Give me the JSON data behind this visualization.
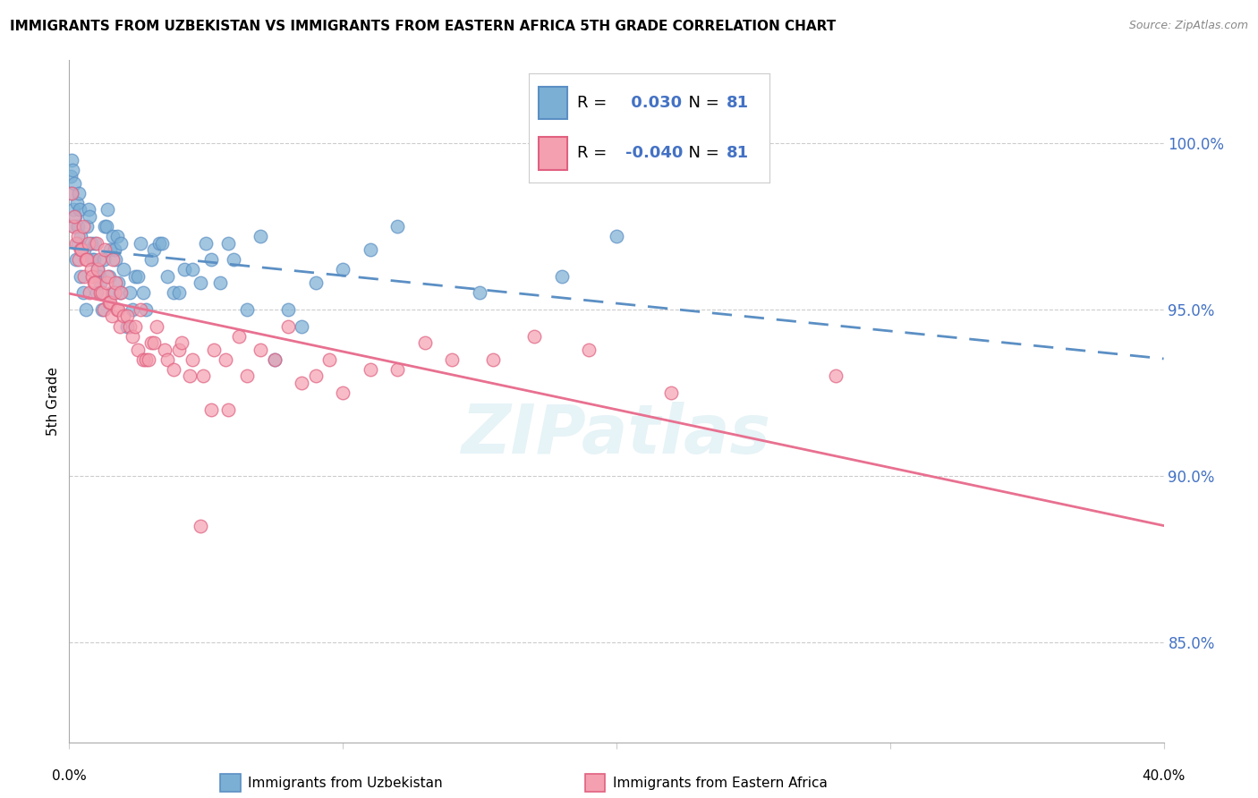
{
  "title": "IMMIGRANTS FROM UZBEKISTAN VS IMMIGRANTS FROM EASTERN AFRICA 5TH GRADE CORRELATION CHART",
  "source": "Source: ZipAtlas.com",
  "ylabel": "5th Grade",
  "xmin": 0.0,
  "xmax": 40.0,
  "ymin": 82.0,
  "ymax": 102.5,
  "yticks": [
    85.0,
    90.0,
    95.0,
    100.0
  ],
  "ytick_labels": [
    "85.0%",
    "90.0%",
    "95.0%",
    "100.0%"
  ],
  "r_uzbekistan": 0.03,
  "r_eastern_africa": -0.04,
  "n_uzbekistan": 81,
  "n_eastern_africa": 81,
  "color_uzbekistan": "#7BAFD4",
  "color_eastern_africa": "#F4A0B0",
  "edge_color_uzbekistan": "#5B8FC4",
  "edge_color_eastern_africa": "#E06080",
  "trend_color_uzbekistan": "#5B8FC4",
  "trend_color_eastern_africa": "#E87090",
  "legend_label_uzbekistan": "Immigrants from Uzbekistan",
  "legend_label_eastern_africa": "Immigrants from Eastern Africa",
  "watermark": "ZIPatlas",
  "uzbekistan_x": [
    0.05,
    0.08,
    0.1,
    0.12,
    0.15,
    0.18,
    0.2,
    0.22,
    0.25,
    0.28,
    0.3,
    0.32,
    0.35,
    0.38,
    0.4,
    0.42,
    0.5,
    0.55,
    0.6,
    0.65,
    0.7,
    0.75,
    0.8,
    0.85,
    0.9,
    0.95,
    1.0,
    1.05,
    1.1,
    1.15,
    1.2,
    1.25,
    1.3,
    1.35,
    1.4,
    1.45,
    1.5,
    1.55,
    1.6,
    1.65,
    1.7,
    1.75,
    1.8,
    1.85,
    1.9,
    2.0,
    2.1,
    2.2,
    2.3,
    2.4,
    2.5,
    2.6,
    2.7,
    2.8,
    3.0,
    3.1,
    3.3,
    3.4,
    3.6,
    3.8,
    4.0,
    4.2,
    4.5,
    4.8,
    5.0,
    5.2,
    5.5,
    5.8,
    6.0,
    6.5,
    7.0,
    7.5,
    8.0,
    8.5,
    9.0,
    10.0,
    11.0,
    12.0,
    15.0,
    18.0,
    20.0
  ],
  "uzbekistan_y": [
    99.0,
    98.5,
    99.5,
    99.2,
    98.0,
    98.8,
    97.5,
    97.8,
    96.5,
    98.2,
    97.0,
    97.5,
    98.5,
    98.0,
    96.0,
    97.2,
    95.5,
    96.8,
    95.0,
    97.5,
    98.0,
    97.8,
    97.0,
    96.5,
    96.5,
    97.0,
    95.5,
    96.2,
    96.0,
    95.8,
    95.0,
    96.5,
    97.5,
    97.5,
    98.0,
    96.0,
    96.8,
    95.5,
    97.2,
    96.8,
    96.5,
    97.2,
    95.8,
    95.5,
    97.0,
    96.2,
    94.5,
    95.5,
    95.0,
    96.0,
    96.0,
    97.0,
    95.5,
    95.0,
    96.5,
    96.8,
    97.0,
    97.0,
    96.0,
    95.5,
    95.5,
    96.2,
    96.2,
    95.8,
    97.0,
    96.5,
    95.8,
    97.0,
    96.5,
    95.0,
    97.2,
    93.5,
    95.0,
    94.5,
    95.8,
    96.2,
    96.8,
    97.5,
    95.5,
    96.0,
    97.2
  ],
  "eastern_africa_x": [
    0.1,
    0.15,
    0.2,
    0.25,
    0.3,
    0.35,
    0.4,
    0.45,
    0.5,
    0.55,
    0.6,
    0.65,
    0.7,
    0.75,
    0.8,
    0.85,
    0.9,
    0.95,
    1.0,
    1.05,
    1.1,
    1.15,
    1.2,
    1.25,
    1.3,
    1.35,
    1.4,
    1.45,
    1.5,
    1.55,
    1.6,
    1.65,
    1.7,
    1.75,
    1.8,
    1.85,
    1.9,
    2.0,
    2.1,
    2.2,
    2.3,
    2.4,
    2.5,
    2.6,
    2.7,
    2.8,
    2.9,
    3.0,
    3.1,
    3.2,
    3.5,
    3.6,
    3.8,
    4.0,
    4.1,
    4.4,
    4.5,
    4.8,
    4.9,
    5.2,
    5.3,
    5.7,
    5.8,
    6.2,
    6.5,
    7.0,
    7.5,
    8.0,
    8.5,
    9.0,
    9.5,
    10.0,
    11.0,
    12.0,
    13.0,
    14.0,
    15.5,
    17.0,
    19.0,
    22.0,
    28.0
  ],
  "eastern_africa_y": [
    98.5,
    97.5,
    97.8,
    97.0,
    97.2,
    96.5,
    96.8,
    96.8,
    97.5,
    96.0,
    96.5,
    96.5,
    97.0,
    95.5,
    96.2,
    96.0,
    95.8,
    95.8,
    97.0,
    96.2,
    96.5,
    95.5,
    95.5,
    95.0,
    96.8,
    95.8,
    96.0,
    95.2,
    95.2,
    94.8,
    96.5,
    95.5,
    95.8,
    95.0,
    95.0,
    94.5,
    95.5,
    94.8,
    94.8,
    94.5,
    94.2,
    94.5,
    93.8,
    95.0,
    93.5,
    93.5,
    93.5,
    94.0,
    94.0,
    94.5,
    93.8,
    93.5,
    93.2,
    93.8,
    94.0,
    93.0,
    93.5,
    88.5,
    93.0,
    92.0,
    93.8,
    93.5,
    92.0,
    94.2,
    93.0,
    93.8,
    93.5,
    94.5,
    92.8,
    93.0,
    93.5,
    92.5,
    93.2,
    93.2,
    94.0,
    93.5,
    93.5,
    94.2,
    93.8,
    92.5,
    93.0
  ]
}
